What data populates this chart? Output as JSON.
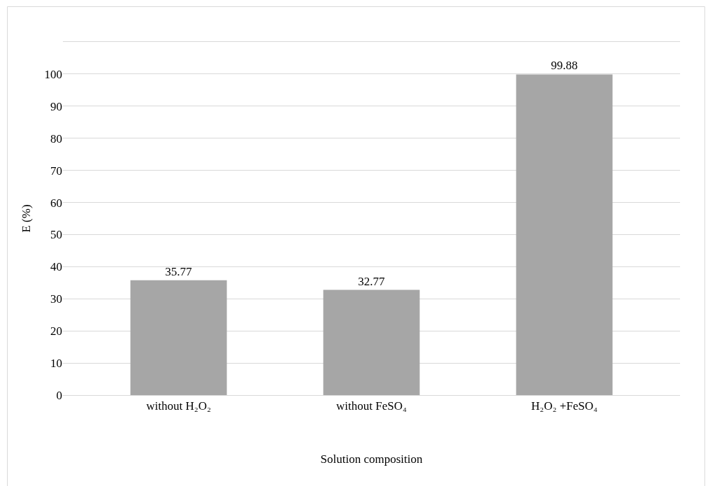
{
  "chart_data": {
    "type": "bar",
    "xlabel": "Solution composition",
    "ylabel": "E (%)",
    "categories": [
      "without H₂O₂",
      "without FeSO₄",
      "H₂O₂ +FeSO₄"
    ],
    "values": [
      35.77,
      32.77,
      99.88
    ],
    "color": "#a6a6a6",
    "ylim": [
      0,
      110
    ],
    "yticks": [
      0,
      10,
      20,
      30,
      40,
      50,
      60,
      70,
      80,
      90,
      100,
      {
        "value": 110,
        "label": null
      }
    ],
    "grid": "y",
    "data_labels": true
  }
}
